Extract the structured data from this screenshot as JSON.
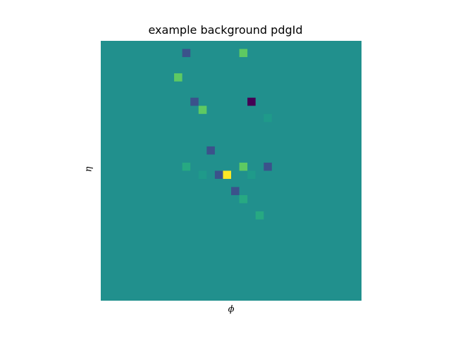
{
  "chart_data": {
    "type": "heatmap",
    "title": "example background pdgId",
    "xlabel": "ϕ",
    "ylabel": "η",
    "grid_shape": [
      32,
      32
    ],
    "background_color": "#21908d",
    "ticks": "none",
    "colors": {
      "min": "#440154",
      "dark_blue": "#3b528b",
      "teal_dark": "#2c728e",
      "teal": "#21908d",
      "green_teal": "#27a982",
      "green": "#5ec962",
      "max": "#fde725"
    },
    "cells": [
      {
        "row": 1,
        "col": 10,
        "color": "#3b528b"
      },
      {
        "row": 1,
        "col": 17,
        "color": "#5ec962"
      },
      {
        "row": 4,
        "col": 9,
        "color": "#5ec962"
      },
      {
        "row": 7,
        "col": 11,
        "color": "#3b528b"
      },
      {
        "row": 7,
        "col": 18,
        "color": "#440154"
      },
      {
        "row": 8,
        "col": 12,
        "color": "#5ec962"
      },
      {
        "row": 9,
        "col": 20,
        "color": "#1f9a8a"
      },
      {
        "row": 13,
        "col": 13,
        "color": "#3b528b"
      },
      {
        "row": 15,
        "col": 10,
        "color": "#27a982"
      },
      {
        "row": 15,
        "col": 17,
        "color": "#5ec962"
      },
      {
        "row": 15,
        "col": 20,
        "color": "#3b528b"
      },
      {
        "row": 16,
        "col": 12,
        "color": "#1f9a8a"
      },
      {
        "row": 16,
        "col": 14,
        "color": "#3b528b"
      },
      {
        "row": 16,
        "col": 15,
        "color": "#fde725"
      },
      {
        "row": 16,
        "col": 18,
        "color": "#1f9a8a"
      },
      {
        "row": 18,
        "col": 16,
        "color": "#3b528b"
      },
      {
        "row": 19,
        "col": 17,
        "color": "#27a982"
      },
      {
        "row": 21,
        "col": 19,
        "color": "#27a982"
      }
    ]
  }
}
